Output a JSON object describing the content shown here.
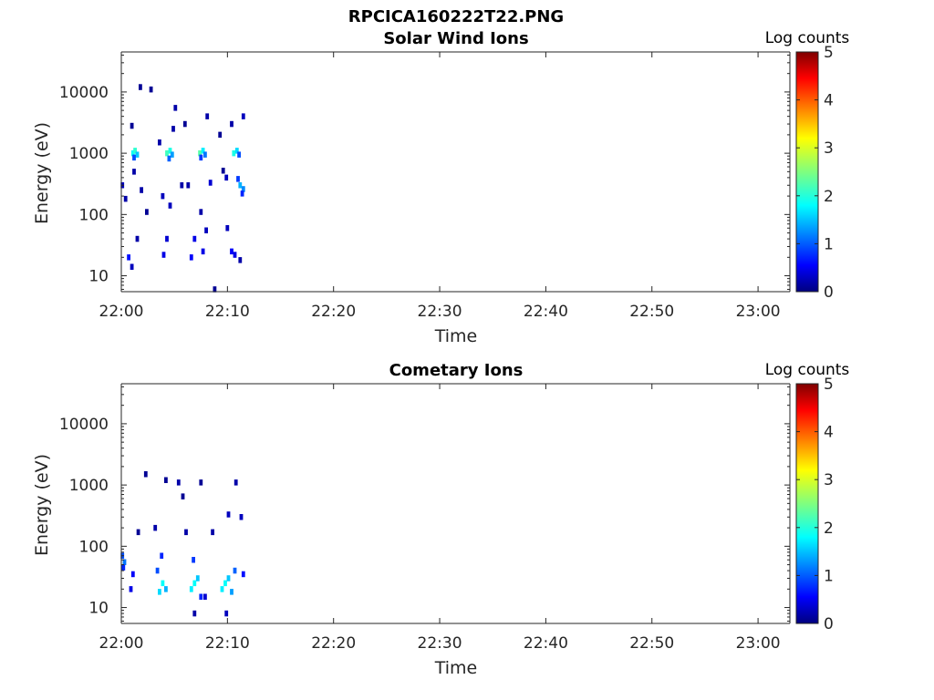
{
  "figure_title": "RPCICA160222T22.PNG",
  "chart_data": [
    {
      "type": "heatmap",
      "title": "Solar Wind Ions",
      "xlabel": "Time",
      "ylabel": "Energy (eV)",
      "x_ticks": [
        "22:00",
        "22:10",
        "22:20",
        "22:30",
        "22:40",
        "22:50",
        "23:00"
      ],
      "xlim": [
        "22:00",
        "23:03"
      ],
      "y_scale": "log",
      "y_ticks": [
        10,
        100,
        1000,
        10000
      ],
      "y_tick_labels": [
        "10",
        "100",
        "1000",
        "10000"
      ],
      "ylim": [
        5.5,
        45000
      ],
      "colorbar": {
        "label": "Log counts",
        "range": [
          0,
          5
        ],
        "ticks": [
          "0",
          "1",
          "2",
          "3",
          "4",
          "5"
        ],
        "colormap": "jet"
      },
      "cells_note": "t in minutes after 22:00, e in eV, v in log counts",
      "cells": [
        {
          "t": 1.1,
          "e": 1000,
          "v": 1.9
        },
        {
          "t": 1.3,
          "e": 1100,
          "v": 2.1
        },
        {
          "t": 1.5,
          "e": 950,
          "v": 1.6
        },
        {
          "t": 1.2,
          "e": 850,
          "v": 1.0
        },
        {
          "t": 4.3,
          "e": 1000,
          "v": 2.2
        },
        {
          "t": 4.6,
          "e": 1100,
          "v": 2.0
        },
        {
          "t": 4.8,
          "e": 950,
          "v": 1.4
        },
        {
          "t": 4.5,
          "e": 820,
          "v": 1.1
        },
        {
          "t": 7.4,
          "e": 1000,
          "v": 2.3
        },
        {
          "t": 7.7,
          "e": 1100,
          "v": 1.8
        },
        {
          "t": 7.9,
          "e": 950,
          "v": 1.2
        },
        {
          "t": 7.5,
          "e": 850,
          "v": 0.9
        },
        {
          "t": 10.6,
          "e": 1000,
          "v": 2.0
        },
        {
          "t": 10.9,
          "e": 1100,
          "v": 1.7
        },
        {
          "t": 11.1,
          "e": 950,
          "v": 1.0
        },
        {
          "t": 11.2,
          "e": 300,
          "v": 1.5
        },
        {
          "t": 11.5,
          "e": 260,
          "v": 1.3
        },
        {
          "t": 11.0,
          "e": 380,
          "v": 0.9
        },
        {
          "t": 11.4,
          "e": 220,
          "v": 0.8
        },
        {
          "t": 0.7,
          "e": 20,
          "v": 0.7
        },
        {
          "t": 1.0,
          "e": 14,
          "v": 0.3
        },
        {
          "t": 1.5,
          "e": 40,
          "v": 0.2
        },
        {
          "t": 4.0,
          "e": 22,
          "v": 0.5
        },
        {
          "t": 4.3,
          "e": 40,
          "v": 0.4
        },
        {
          "t": 6.6,
          "e": 20,
          "v": 0.6
        },
        {
          "t": 6.9,
          "e": 40,
          "v": 0.5
        },
        {
          "t": 7.7,
          "e": 25,
          "v": 0.5
        },
        {
          "t": 8.0,
          "e": 55,
          "v": 0.3
        },
        {
          "t": 10.4,
          "e": 25,
          "v": 0.6
        },
        {
          "t": 10.7,
          "e": 22,
          "v": 0.5
        },
        {
          "t": 10.0,
          "e": 60,
          "v": 0.3
        },
        {
          "t": 11.2,
          "e": 18,
          "v": 0.2
        },
        {
          "t": 1.8,
          "e": 12000,
          "v": 0.1
        },
        {
          "t": 2.8,
          "e": 11000,
          "v": 0.1
        },
        {
          "t": 5.1,
          "e": 5500,
          "v": 0.2
        },
        {
          "t": 8.1,
          "e": 4000,
          "v": 0.2
        },
        {
          "t": 11.5,
          "e": 4000,
          "v": 0.3
        },
        {
          "t": 10.4,
          "e": 3000,
          "v": 0.2
        },
        {
          "t": 6.0,
          "e": 3000,
          "v": 0.1
        },
        {
          "t": 4.9,
          "e": 2500,
          "v": 0.2
        },
        {
          "t": 1.0,
          "e": 2800,
          "v": 0.1
        },
        {
          "t": 3.6,
          "e": 1500,
          "v": 0.2
        },
        {
          "t": 9.3,
          "e": 2000,
          "v": 0.1
        },
        {
          "t": 0.1,
          "e": 300,
          "v": 0.3
        },
        {
          "t": 0.4,
          "e": 180,
          "v": 0.2
        },
        {
          "t": 1.9,
          "e": 250,
          "v": 0.2
        },
        {
          "t": 3.9,
          "e": 200,
          "v": 0.3
        },
        {
          "t": 4.6,
          "e": 140,
          "v": 0.3
        },
        {
          "t": 6.3,
          "e": 300,
          "v": 0.2
        },
        {
          "t": 8.4,
          "e": 330,
          "v": 0.4
        },
        {
          "t": 9.9,
          "e": 400,
          "v": 0.3
        },
        {
          "t": 2.4,
          "e": 110,
          "v": 0.1
        },
        {
          "t": 5.7,
          "e": 300,
          "v": 0.2
        },
        {
          "t": 7.5,
          "e": 110,
          "v": 0.2
        },
        {
          "t": 1.2,
          "e": 500,
          "v": 0.2
        },
        {
          "t": 9.6,
          "e": 520,
          "v": 0.1
        },
        {
          "t": 8.8,
          "e": 6.0,
          "v": 0.1
        }
      ]
    },
    {
      "type": "heatmap",
      "title": "Cometary Ions",
      "xlabel": "Time",
      "ylabel": "Energy (eV)",
      "x_ticks": [
        "22:00",
        "22:10",
        "22:20",
        "22:30",
        "22:40",
        "22:50",
        "23:00"
      ],
      "xlim": [
        "22:00",
        "23:03"
      ],
      "y_scale": "log",
      "y_ticks": [
        10,
        100,
        1000,
        10000
      ],
      "y_tick_labels": [
        "10",
        "100",
        "1000",
        "10000"
      ],
      "ylim": [
        5.5,
        45000
      ],
      "colorbar": {
        "label": "Log counts",
        "range": [
          0,
          5
        ],
        "ticks": [
          "0",
          "1",
          "2",
          "3",
          "4",
          "5"
        ],
        "colormap": "jet"
      },
      "cells_note": "t in minutes after 22:00, e in eV, v in log counts",
      "cells": [
        {
          "t": 3.6,
          "e": 18,
          "v": 1.7
        },
        {
          "t": 3.9,
          "e": 25,
          "v": 1.9
        },
        {
          "t": 4.2,
          "e": 20,
          "v": 1.5
        },
        {
          "t": 3.4,
          "e": 40,
          "v": 1.0
        },
        {
          "t": 3.8,
          "e": 70,
          "v": 0.8
        },
        {
          "t": 6.6,
          "e": 20,
          "v": 1.8
        },
        {
          "t": 6.9,
          "e": 25,
          "v": 1.9
        },
        {
          "t": 7.2,
          "e": 30,
          "v": 1.6
        },
        {
          "t": 7.5,
          "e": 15,
          "v": 0.8
        },
        {
          "t": 6.8,
          "e": 60,
          "v": 0.9
        },
        {
          "t": 9.5,
          "e": 20,
          "v": 1.8
        },
        {
          "t": 9.8,
          "e": 25,
          "v": 1.9
        },
        {
          "t": 10.1,
          "e": 30,
          "v": 1.6
        },
        {
          "t": 10.4,
          "e": 18,
          "v": 1.4
        },
        {
          "t": 10.7,
          "e": 40,
          "v": 1.1
        },
        {
          "t": 0.1,
          "e": 70,
          "v": 1.0
        },
        {
          "t": 0.3,
          "e": 55,
          "v": 1.2
        },
        {
          "t": 0.2,
          "e": 45,
          "v": 0.8
        },
        {
          "t": 0.9,
          "e": 20,
          "v": 0.5
        },
        {
          "t": 1.1,
          "e": 35,
          "v": 0.6
        },
        {
          "t": 7.9,
          "e": 15,
          "v": 0.4
        },
        {
          "t": 9.9,
          "e": 8,
          "v": 0.3
        },
        {
          "t": 6.9,
          "e": 8,
          "v": 0.2
        },
        {
          "t": 11.5,
          "e": 35,
          "v": 0.7
        },
        {
          "t": 2.3,
          "e": 1500,
          "v": 0.1
        },
        {
          "t": 4.2,
          "e": 1200,
          "v": 0.1
        },
        {
          "t": 5.4,
          "e": 1100,
          "v": 0.2
        },
        {
          "t": 7.5,
          "e": 1100,
          "v": 0.1
        },
        {
          "t": 10.8,
          "e": 1100,
          "v": 0.2
        },
        {
          "t": 11.3,
          "e": 300,
          "v": 0.3
        },
        {
          "t": 3.2,
          "e": 200,
          "v": 0.2
        },
        {
          "t": 6.1,
          "e": 170,
          "v": 0.2
        },
        {
          "t": 8.6,
          "e": 170,
          "v": 0.2
        },
        {
          "t": 10.1,
          "e": 330,
          "v": 0.3
        },
        {
          "t": 1.6,
          "e": 170,
          "v": 0.1
        },
        {
          "t": 5.8,
          "e": 650,
          "v": 0.1
        }
      ]
    }
  ]
}
